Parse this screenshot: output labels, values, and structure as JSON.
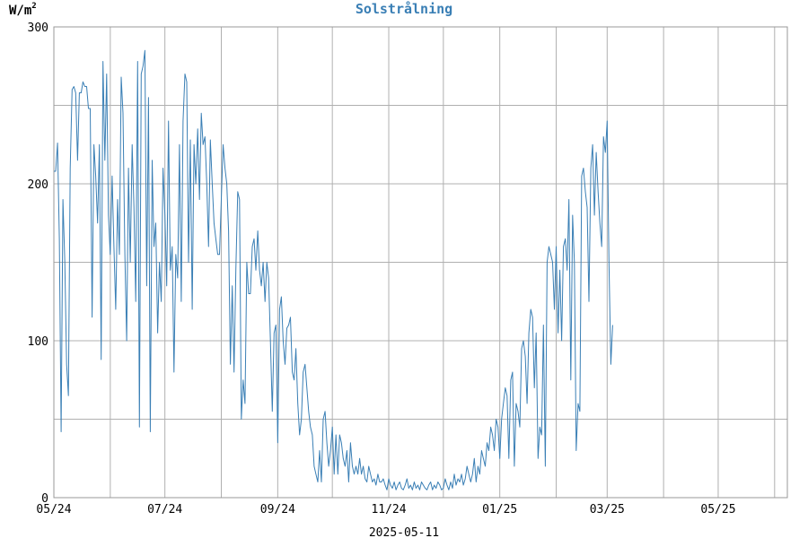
{
  "chart_data": {
    "type": "line",
    "title": "Solstrålning",
    "ylabel_unit": "W/m",
    "ylabel_sup": "2",
    "footer_date": "2025-05-11",
    "ylim": [
      0,
      300
    ],
    "y_ticks": [
      0,
      100,
      200,
      300
    ],
    "y_grid": [
      0,
      50,
      100,
      150,
      200,
      250,
      300
    ],
    "xlim": [
      "2024-05-01",
      "2025-06-08"
    ],
    "x_ticks": [
      {
        "label": "05/24",
        "date": "2024-05-01"
      },
      {
        "label": "07/24",
        "date": "2024-07-01"
      },
      {
        "label": "09/24",
        "date": "2024-09-01"
      },
      {
        "label": "11/24",
        "date": "2024-11-01"
      },
      {
        "label": "01/25",
        "date": "2025-01-01"
      },
      {
        "label": "03/25",
        "date": "2025-03-01"
      },
      {
        "label": "05/25",
        "date": "2025-05-01"
      }
    ],
    "x_grid_monthly": true,
    "grid": true,
    "colors": {
      "line": "#3a7fb5",
      "title": "#3a7fb5",
      "grid": "#b0b0b0",
      "axis": "#999999"
    },
    "series": [
      {
        "start_date": "2024-05-01",
        "x_unit": "day",
        "values": [
          208,
          208,
          226,
          165,
          42,
          190,
          150,
          85,
          65,
          210,
          260,
          262,
          258,
          215,
          258,
          258,
          265,
          262,
          262,
          248,
          248,
          115,
          225,
          205,
          175,
          225,
          88,
          278,
          215,
          270,
          180,
          155,
          205,
          160,
          120,
          190,
          155,
          268,
          245,
          155,
          100,
          210,
          150,
          225,
          185,
          125,
          278,
          45,
          270,
          275,
          285,
          135,
          255,
          42,
          215,
          160,
          175,
          105,
          150,
          125,
          210,
          180,
          135,
          240,
          145,
          160,
          80,
          155,
          140,
          225,
          125,
          240,
          270,
          265,
          150,
          228,
          120,
          225,
          200,
          235,
          190,
          245,
          225,
          230,
          200,
          160,
          228,
          200,
          175,
          165,
          155,
          155,
          190,
          225,
          210,
          200,
          170,
          85,
          135,
          80,
          145,
          195,
          190,
          50,
          75,
          60,
          150,
          130,
          130,
          160,
          165,
          145,
          170,
          145,
          135,
          150,
          125,
          150,
          140,
          100,
          55,
          105,
          110,
          35,
          120,
          128,
          100,
          85,
          108,
          110,
          115,
          80,
          75,
          95,
          60,
          40,
          50,
          80,
          85,
          70,
          55,
          45,
          40,
          20,
          15,
          10,
          30,
          10,
          50,
          55,
          35,
          20,
          30,
          45,
          15,
          40,
          15,
          40,
          35,
          25,
          20,
          30,
          10,
          35,
          20,
          15,
          20,
          15,
          25,
          15,
          20,
          12,
          10,
          20,
          15,
          10,
          12,
          8,
          15,
          10,
          10,
          12,
          8,
          5,
          12,
          8,
          6,
          10,
          5,
          8,
          10,
          6,
          5,
          8,
          12,
          6,
          8,
          5,
          10,
          6,
          8,
          5,
          10,
          8,
          6,
          5,
          8,
          10,
          5,
          8,
          6,
          10,
          8,
          5,
          6,
          12,
          8,
          5,
          10,
          6,
          15,
          8,
          12,
          10,
          15,
          8,
          12,
          20,
          15,
          10,
          15,
          25,
          10,
          20,
          15,
          30,
          25,
          20,
          35,
          30,
          45,
          40,
          30,
          50,
          45,
          25,
          50,
          60,
          70,
          65,
          25,
          75,
          80,
          20,
          60,
          55,
          45,
          95,
          100,
          90,
          60,
          105,
          120,
          115,
          70,
          105,
          25,
          45,
          40,
          110,
          20,
          150,
          160,
          155,
          150,
          120,
          160,
          105,
          145,
          100,
          160,
          165,
          145,
          190,
          75,
          180,
          150,
          30,
          60,
          55,
          205,
          210,
          195,
          185,
          125,
          210,
          225,
          180,
          220,
          195,
          175,
          160,
          230,
          220,
          240,
          150,
          85,
          110
        ]
      }
    ]
  }
}
